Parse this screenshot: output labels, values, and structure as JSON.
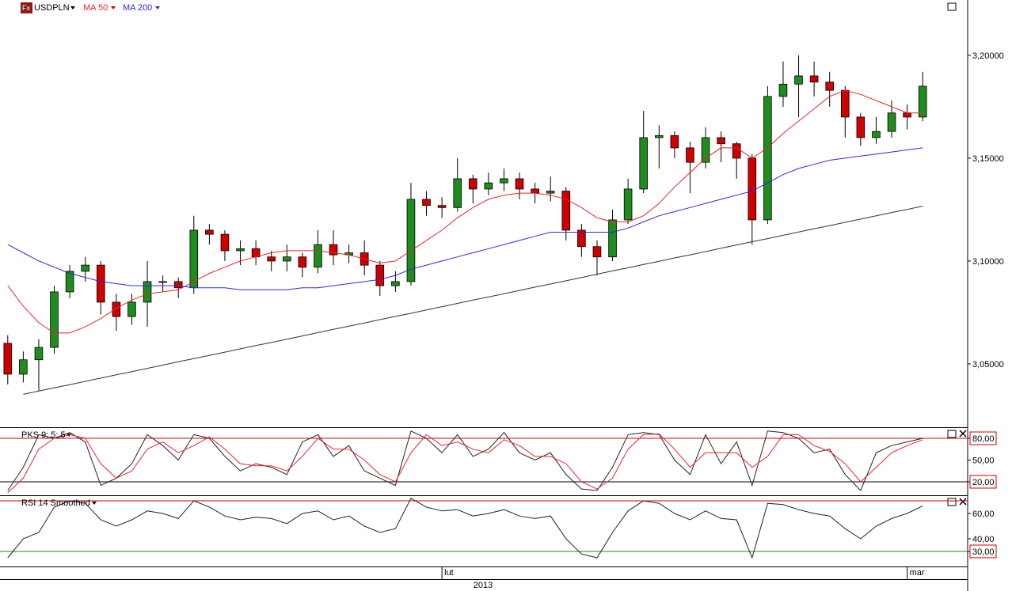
{
  "toolbar": {
    "icon": "Fx"
  },
  "chart_data": [
    {
      "type": "candlestick",
      "title": "USDPLN",
      "xlabel": "2013",
      "categories": [
        null,
        null,
        null,
        null,
        null,
        null,
        null,
        null,
        null,
        null,
        null,
        null,
        null,
        null,
        null,
        null,
        null,
        null,
        null,
        null,
        null,
        null,
        null,
        null,
        null,
        null,
        null,
        null,
        "lut",
        null,
        null,
        null,
        null,
        null,
        null,
        null,
        null,
        null,
        null,
        null,
        null,
        null,
        null,
        null,
        null,
        null,
        null,
        null,
        null,
        null,
        null,
        null,
        null,
        null,
        null,
        null,
        null,
        null,
        "mar",
        null
      ],
      "up_color": "#1e8c1e",
      "down_color": "#d00000",
      "open": [
        3.06,
        3.045,
        3.052,
        3.058,
        3.085,
        3.095,
        3.098,
        3.08,
        3.073,
        3.08,
        3.09,
        3.09,
        3.087,
        3.115,
        3.113,
        3.105,
        3.106,
        3.102,
        3.1,
        3.102,
        3.097,
        3.108,
        3.103,
        3.104,
        3.098,
        3.088,
        3.09,
        3.13,
        3.127,
        3.126,
        3.14,
        3.135,
        3.138,
        3.14,
        3.135,
        3.133,
        3.134,
        3.115,
        3.107,
        3.102,
        3.12,
        3.135,
        3.16,
        3.161,
        3.155,
        3.148,
        3.16,
        3.157,
        3.15,
        3.12,
        3.18,
        3.186,
        3.19,
        3.187,
        3.183,
        3.17,
        3.16,
        3.163,
        3.172,
        3.17
      ],
      "high": [
        3.064,
        3.056,
        3.062,
        3.088,
        3.098,
        3.102,
        3.1,
        3.084,
        3.084,
        3.1,
        3.093,
        3.092,
        3.122,
        3.118,
        3.115,
        3.11,
        3.11,
        3.105,
        3.108,
        3.104,
        3.115,
        3.115,
        3.108,
        3.11,
        3.1,
        3.095,
        3.138,
        3.134,
        3.131,
        3.15,
        3.142,
        3.143,
        3.145,
        3.143,
        3.138,
        3.141,
        3.136,
        3.118,
        3.11,
        3.125,
        3.14,
        3.173,
        3.166,
        3.163,
        3.158,
        3.165,
        3.163,
        3.158,
        3.152,
        3.185,
        3.197,
        3.2,
        3.197,
        3.192,
        3.185,
        3.172,
        3.17,
        3.178,
        3.176,
        3.192
      ],
      "low": [
        3.04,
        3.041,
        3.037,
        3.055,
        3.082,
        3.09,
        3.074,
        3.066,
        3.069,
        3.068,
        3.085,
        3.082,
        3.084,
        3.108,
        3.1,
        3.098,
        3.098,
        3.095,
        3.095,
        3.092,
        3.094,
        3.098,
        3.099,
        3.093,
        3.083,
        3.085,
        3.088,
        3.122,
        3.121,
        3.124,
        3.128,
        3.132,
        3.134,
        3.13,
        3.128,
        3.129,
        3.11,
        3.102,
        3.093,
        3.1,
        3.118,
        3.133,
        3.145,
        3.15,
        3.133,
        3.145,
        3.148,
        3.14,
        3.108,
        3.118,
        3.175,
        3.17,
        3.18,
        3.175,
        3.16,
        3.156,
        3.157,
        3.16,
        3.164,
        3.168
      ],
      "close": [
        3.045,
        3.052,
        3.058,
        3.085,
        3.095,
        3.098,
        3.08,
        3.073,
        3.08,
        3.09,
        3.09,
        3.087,
        3.115,
        3.113,
        3.105,
        3.106,
        3.102,
        3.1,
        3.102,
        3.097,
        3.108,
        3.103,
        3.104,
        3.098,
        3.088,
        3.09,
        3.13,
        3.127,
        3.126,
        3.14,
        3.135,
        3.138,
        3.14,
        3.135,
        3.133,
        3.134,
        3.115,
        3.107,
        3.102,
        3.12,
        3.135,
        3.16,
        3.161,
        3.155,
        3.148,
        3.16,
        3.157,
        3.15,
        3.12,
        3.18,
        3.186,
        3.19,
        3.187,
        3.183,
        3.17,
        3.16,
        3.163,
        3.172,
        3.17,
        3.185
      ],
      "series": [
        {
          "name": "MA 50",
          "color": "#e8262b",
          "values": [
            3.088,
            3.078,
            3.07,
            3.065,
            3.065,
            3.068,
            3.072,
            3.077,
            3.081,
            3.084,
            3.085,
            3.086,
            3.09,
            3.094,
            3.097,
            3.1,
            3.102,
            3.104,
            3.105,
            3.105,
            3.105,
            3.104,
            3.103,
            3.101,
            3.099,
            3.1,
            3.105,
            3.11,
            3.115,
            3.121,
            3.126,
            3.13,
            3.132,
            3.133,
            3.133,
            3.132,
            3.13,
            3.126,
            3.121,
            3.119,
            3.119,
            3.122,
            3.128,
            3.136,
            3.143,
            3.15,
            3.155,
            3.155,
            3.15,
            3.155,
            3.162,
            3.168,
            3.174,
            3.18,
            3.183,
            3.181,
            3.178,
            3.175,
            3.172,
            3.172
          ]
        },
        {
          "name": "MA 200",
          "color": "#2a2ae0",
          "values": [
            3.108,
            3.104,
            3.1,
            3.097,
            3.094,
            3.092,
            3.09,
            3.089,
            3.088,
            3.088,
            3.088,
            3.088,
            3.087,
            3.087,
            3.087,
            3.086,
            3.086,
            3.086,
            3.086,
            3.087,
            3.087,
            3.088,
            3.089,
            3.09,
            3.091,
            3.093,
            3.096,
            3.098,
            3.1,
            3.102,
            3.104,
            3.106,
            3.108,
            3.11,
            3.112,
            3.114,
            3.114,
            3.114,
            3.114,
            3.114,
            3.116,
            3.119,
            3.122,
            3.124,
            3.126,
            3.128,
            3.13,
            3.132,
            3.134,
            3.138,
            3.142,
            3.145,
            3.147,
            3.149,
            3.15,
            3.151,
            3.152,
            3.153,
            3.154,
            3.155
          ]
        },
        {
          "color": "#333333",
          "values": [
            null,
            3.0352,
            3.0368,
            3.0384,
            3.0399,
            3.0415,
            3.0431,
            3.0447,
            3.0462,
            3.0478,
            3.0494,
            3.051,
            3.0526,
            3.0541,
            3.0557,
            3.0573,
            3.0589,
            3.0604,
            3.062,
            3.0636,
            3.0652,
            3.0668,
            3.0683,
            3.0699,
            3.0715,
            3.0731,
            3.0746,
            3.0762,
            3.0778,
            3.0794,
            3.081,
            3.0825,
            3.0841,
            3.0857,
            3.0873,
            3.0888,
            3.0904,
            3.092,
            3.0936,
            3.0952,
            3.0967,
            3.0983,
            3.0999,
            3.1015,
            3.103,
            3.1046,
            3.1062,
            3.1078,
            3.1094,
            3.1109,
            3.1125,
            3.1141,
            3.1157,
            3.1172,
            3.1188,
            3.1204,
            3.122,
            3.1236,
            3.1251,
            3.1267
          ]
        }
      ],
      "ylim": [
        3.0192,
        3.2269
      ],
      "yticks": [
        {
          "value": 3.2,
          "label": "3,20000"
        },
        {
          "value": 3.15,
          "label": "3,15000"
        },
        {
          "value": 3.1,
          "label": "3,10000"
        },
        {
          "value": 3.05,
          "label": "3,05000"
        }
      ]
    },
    {
      "type": "line",
      "title": "PKS 9; 5; 5",
      "series": [
        {
          "color": "#222222",
          "values": [
            8,
            40,
            85,
            80,
            88,
            75,
            15,
            25,
            45,
            85,
            70,
            50,
            85,
            80,
            55,
            35,
            45,
            40,
            30,
            75,
            85,
            55,
            70,
            35,
            25,
            15,
            90,
            80,
            60,
            85,
            55,
            65,
            88,
            60,
            50,
            60,
            30,
            10,
            8,
            40,
            85,
            88,
            85,
            50,
            30,
            85,
            45,
            75,
            15,
            90,
            88,
            80,
            60,
            65,
            30,
            8,
            60,
            70,
            75,
            80
          ]
        },
        {
          "color": "#e8262b",
          "values": [
            5,
            25,
            65,
            80,
            85,
            80,
            45,
            25,
            35,
            65,
            75,
            60,
            70,
            82,
            65,
            45,
            42,
            42,
            35,
            55,
            80,
            65,
            65,
            50,
            30,
            20,
            60,
            85,
            70,
            75,
            65,
            60,
            78,
            70,
            55,
            55,
            45,
            20,
            10,
            25,
            65,
            85,
            86,
            65,
            40,
            60,
            60,
            60,
            40,
            55,
            85,
            85,
            70,
            62,
            45,
            20,
            40,
            60,
            70,
            78
          ]
        }
      ],
      "hlines": [
        {
          "value": 80,
          "color": "#d00000"
        },
        {
          "value": 20,
          "color": "#000000"
        }
      ],
      "ylim": [
        2.5,
        94.2
      ],
      "yticks": [
        {
          "value": 80,
          "label": "80,00",
          "boxed": true
        },
        {
          "value": 50,
          "label": "50,00"
        },
        {
          "value": 20,
          "label": "20,00",
          "boxed": true
        }
      ]
    },
    {
      "type": "line",
      "title": "RSI 14 Smoothed",
      "series": [
        {
          "color": "#222222",
          "values": [
            25,
            40,
            45,
            65,
            70,
            68,
            55,
            50,
            55,
            62,
            60,
            56,
            70,
            65,
            58,
            55,
            57,
            56,
            52,
            60,
            62,
            55,
            58,
            50,
            45,
            48,
            72,
            65,
            62,
            63,
            58,
            60,
            63,
            58,
            56,
            58,
            40,
            28,
            25,
            45,
            62,
            70,
            68,
            60,
            55,
            62,
            56,
            55,
            25,
            68,
            67,
            63,
            60,
            58,
            48,
            40,
            50,
            56,
            60,
            66
          ]
        }
      ],
      "hlines": [
        {
          "value": 70,
          "color": "#d00000"
        },
        {
          "value": 30,
          "color": "#1e8c1e"
        }
      ],
      "ylim": [
        18.1,
        73.75
      ],
      "yticks": [
        {
          "value": 60,
          "label": "60,00"
        },
        {
          "value": 40,
          "label": "40,00"
        },
        {
          "value": 30,
          "label": "30,00",
          "boxed": true
        }
      ]
    }
  ]
}
